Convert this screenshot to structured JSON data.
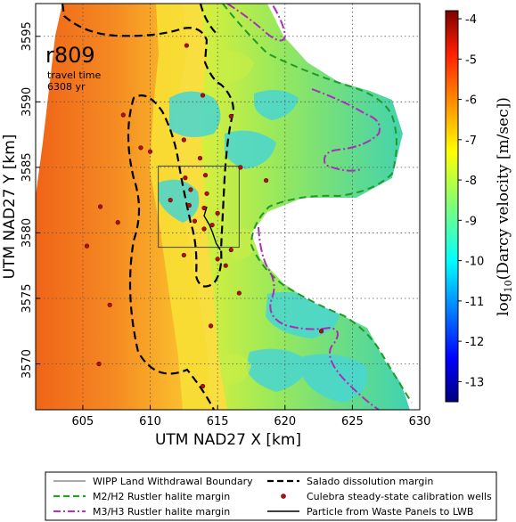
{
  "map": {
    "run_label": "r809",
    "travel_time_label": "travel time",
    "travel_time_value": "6308 yr",
    "x_axis_label": "UTM NAD27 X [km]",
    "y_axis_label": "UTM NAD27 Y [km]",
    "x_range": [
      601.5,
      630
    ],
    "y_range": [
      3566.5,
      3597.5
    ],
    "x_ticks": [
      "605",
      "610",
      "615",
      "620",
      "625",
      "630"
    ],
    "y_ticks": [
      "3570",
      "3575",
      "3580",
      "3585",
      "3590",
      "3595"
    ],
    "grid": "dotted",
    "domain_extent": {
      "x": [
        601.5,
        630
      ],
      "y": [
        3566.5,
        3597.5
      ]
    }
  },
  "colorbar": {
    "label": "log10(Darcy velocity [m/sec])",
    "label_prefix": "log",
    "label_sub": "10",
    "label_suffix": "(Darcy velocity [m/sec])",
    "range": [
      -13.5,
      -3.8
    ],
    "ticks": [
      "-4",
      "-5",
      "-6",
      "-7",
      "-8",
      "-9",
      "-10",
      "-11",
      "-12",
      "-13"
    ],
    "colormap": "jet"
  },
  "legend": {
    "items": [
      {
        "label": "WIPP Land Withdrawal Boundary",
        "style": "thin-solid",
        "color": "#555555"
      },
      {
        "label": "Salado dissolution margin",
        "style": "dashed",
        "color": "#000000"
      },
      {
        "label": "M2/H2 Rustler halite margin",
        "style": "dashed",
        "color": "#2a9d2a"
      },
      {
        "label": "Culebra steady-state calibration wells",
        "style": "dot",
        "color": "#b01010"
      },
      {
        "label": "M3/H3 Rustler halite margin",
        "style": "dash-dot",
        "color": "#b030c0"
      },
      {
        "label": "Particle from Waste Panels to LWB",
        "style": "solid",
        "color": "#000000"
      }
    ]
  },
  "features": {
    "wipp_boundary_km": {
      "x": [
        610.6,
        616.6
      ],
      "y": [
        3578.9,
        3585.1
      ]
    },
    "wells_km": [
      [
        612.7,
        3594.3
      ],
      [
        613.9,
        3590.5
      ],
      [
        612.5,
        3587.1
      ],
      [
        616.0,
        3588.9
      ],
      [
        608.0,
        3589.0
      ],
      [
        609.3,
        3586.5
      ],
      [
        606.3,
        3582.0
      ],
      [
        605.3,
        3579.0
      ],
      [
        612.6,
        3584.2
      ],
      [
        614.1,
        3584.4
      ],
      [
        613.0,
        3583.3
      ],
      [
        614.2,
        3583.0
      ],
      [
        611.5,
        3582.5
      ],
      [
        612.9,
        3582.1
      ],
      [
        614.0,
        3581.9
      ],
      [
        615.0,
        3581.5
      ],
      [
        613.3,
        3580.9
      ],
      [
        614.0,
        3580.3
      ],
      [
        614.6,
        3580.6
      ],
      [
        612.5,
        3578.3
      ],
      [
        616.0,
        3578.7
      ],
      [
        615.0,
        3578.0
      ],
      [
        615.6,
        3577.5
      ],
      [
        616.6,
        3575.4
      ],
      [
        607.0,
        3574.5
      ],
      [
        614.5,
        3572.9
      ],
      [
        606.2,
        3570.0
      ],
      [
        613.9,
        3568.3
      ],
      [
        622.7,
        3572.5
      ],
      [
        613.7,
        3585.7
      ],
      [
        610.0,
        3586.2
      ],
      [
        616.7,
        3585.0
      ],
      [
        618.6,
        3584.0
      ],
      [
        607.6,
        3580.8
      ]
    ],
    "particle_path_km": [
      [
        614.2,
        3582.0
      ],
      [
        614.0,
        3581.3
      ],
      [
        614.4,
        3580.6
      ],
      [
        614.6,
        3580.1
      ],
      [
        614.9,
        3579.2
      ],
      [
        615.2,
        3578.7
      ]
    ]
  }
}
